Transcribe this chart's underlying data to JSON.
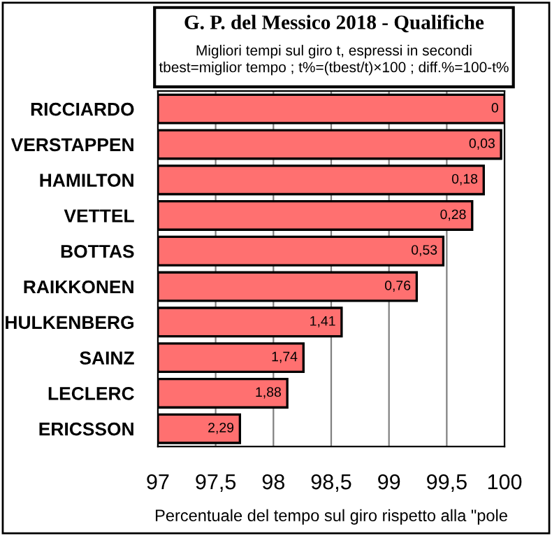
{
  "chart_data": {
    "type": "bar",
    "orientation": "horizontal",
    "title": "G. P. del Messico 2018 - Qualifiche",
    "subtitle": "Migliori tempi sul giro t, espressi in secondi\ntbest=miglior tempo ; t%=(tbest/t)×100 ; diff.%=100-t%",
    "xlabel": "Percentuale del tempo sul giro rispetto alla \"pole",
    "categories": [
      "RICCIARDO",
      "VERSTAPPEN",
      "HAMILTON",
      "VETTEL",
      "BOTTAS",
      "RAIKKONEN",
      "HULKENBERG",
      "SAINZ",
      "LECLERC",
      "ERICSSON"
    ],
    "values": [
      100,
      99.97,
      99.82,
      99.72,
      99.47,
      99.24,
      98.59,
      98.26,
      98.12,
      97.71
    ],
    "annotations": [
      {
        "text": "0",
        "x": 100,
        "y": "RICCIARDO"
      },
      {
        "text": "0,03",
        "x": 99.97,
        "y": "VERSTAPPEN"
      },
      {
        "text": "0,18",
        "x": 99.82,
        "y": "HAMILTON"
      },
      {
        "text": "0,28",
        "x": 99.72,
        "y": "VETTEL"
      },
      {
        "text": "0,53",
        "x": 99.47,
        "y": "BOTTAS"
      },
      {
        "text": "0,76",
        "x": 99.24,
        "y": "RAIKKONEN"
      },
      {
        "text": "1,41",
        "x": 98.59,
        "y": "HULKENBERG"
      },
      {
        "text": "1,74",
        "x": 98.26,
        "y": "SAINZ"
      },
      {
        "text": "1,88",
        "x": 98.12,
        "y": "LECLERC"
      },
      {
        "text": "2,29",
        "x": 97.71,
        "y": "ERICSSON"
      }
    ],
    "color": "#ff7070",
    "xlim": [
      97,
      100
    ],
    "xticks": [
      97,
      {
        "value": 97.5,
        "label": "97,5"
      },
      98,
      {
        "value": 98.5,
        "label": "98,5"
      },
      99,
      {
        "value": 99.5,
        "label": "99,5"
      },
      100
    ],
    "grid": "x",
    "legend": false
  }
}
